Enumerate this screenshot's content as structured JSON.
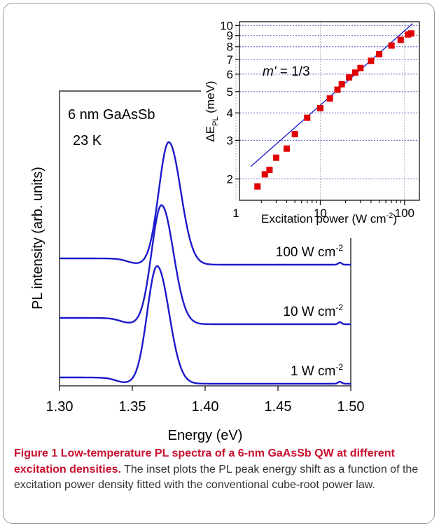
{
  "chart_data": [
    {
      "type": "line",
      "xlabel": "Energy (eV)",
      "ylabel": "PL intensity (arb. units)",
      "xlim": [
        1.3,
        1.5
      ],
      "x_ticks": [
        "1.30",
        "1.35",
        "1.40",
        "1.45",
        "1.50"
      ],
      "annotations": [
        "6 nm GaAsSb",
        "23 K"
      ],
      "series": [
        {
          "name": "100 W cm",
          "sup": "-2",
          "peak_energy": 1.375,
          "color": "#1a1acc"
        },
        {
          "name": "10 W cm",
          "sup": "-2",
          "peak_energy": 1.37,
          "color": "#1a1acc"
        },
        {
          "name": "1 W cm",
          "sup": "-2",
          "peak_energy": 1.367,
          "color": "#1a1acc"
        }
      ]
    },
    {
      "type": "scatter",
      "xscale": "log",
      "yscale": "log",
      "xlabel": "Excitation power (W cm",
      "xlabel_sup": "-2",
      "xlabel_end": ")",
      "ylabel_prefix": "ΔE",
      "ylabel_sub": "PL",
      "ylabel_suffix": " (meV)",
      "xlim": [
        1.1,
        150
      ],
      "ylim": [
        1.6,
        10.4
      ],
      "x_ticks": [
        "1",
        "10",
        "100"
      ],
      "y_ticks": [
        "2",
        "3",
        "4",
        "5",
        "6",
        "7",
        "8",
        "9",
        "10"
      ],
      "grid": true,
      "annotation_var": "m'",
      "annotation_value": " = 1/3",
      "marker_color": "#e00000",
      "fit_color": "#1a1acc",
      "points": [
        {
          "x": 1.8,
          "y": 1.85
        },
        {
          "x": 2.2,
          "y": 2.1
        },
        {
          "x": 2.5,
          "y": 2.2
        },
        {
          "x": 3.0,
          "y": 2.5
        },
        {
          "x": 4.0,
          "y": 2.75
        },
        {
          "x": 5.0,
          "y": 3.2
        },
        {
          "x": 7.0,
          "y": 3.8
        },
        {
          "x": 10,
          "y": 4.2
        },
        {
          "x": 13,
          "y": 4.65
        },
        {
          "x": 16,
          "y": 5.1
        },
        {
          "x": 18,
          "y": 5.4
        },
        {
          "x": 22,
          "y": 5.8
        },
        {
          "x": 26,
          "y": 6.1
        },
        {
          "x": 30,
          "y": 6.4
        },
        {
          "x": 40,
          "y": 6.9
        },
        {
          "x": 50,
          "y": 7.4
        },
        {
          "x": 70,
          "y": 8.1
        },
        {
          "x": 90,
          "y": 8.6
        },
        {
          "x": 110,
          "y": 9.1
        },
        {
          "x": 120,
          "y": 9.2
        }
      ],
      "fit_line": [
        {
          "x": 1.5,
          "y": 2.28
        },
        {
          "x": 125,
          "y": 10.2
        }
      ]
    }
  ],
  "caption": {
    "label": "Figure 1",
    "title": "Low-temperature PL spectra of a 6-nm GaAsSb QW at different excitation densities.",
    "body": "The inset plots the PL peak energy shift as a function of the excitation power density fitted with the conventional cube-root power law."
  }
}
